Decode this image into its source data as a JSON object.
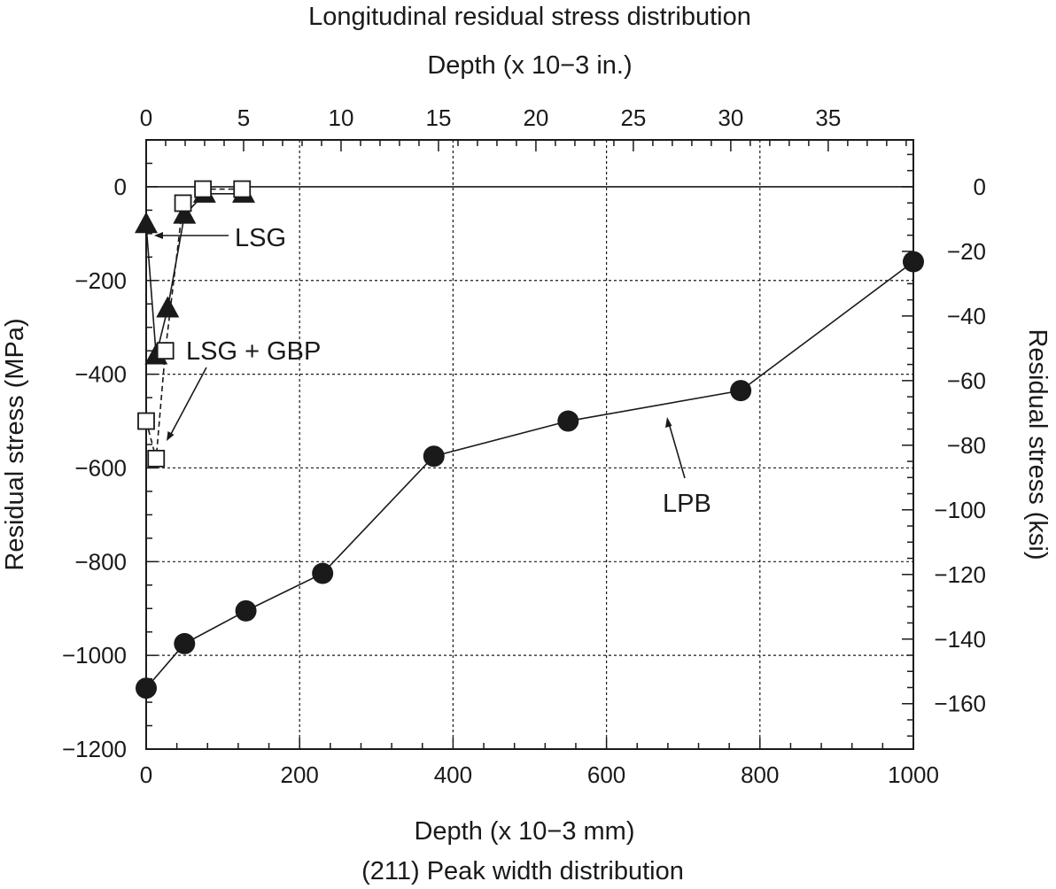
{
  "chart_data": {
    "type": "scatter",
    "title": "Longitudinal residual stress distribution",
    "subtitle": "(211) Peak width distribution",
    "xlabel": "Depth (x 10−3 mm)",
    "x2label": "Depth (x 10−3 in.)",
    "ylabel": "Residual stress (MPa)",
    "y2label": "Residual stress (ksi)",
    "xlim": [
      0,
      1000
    ],
    "ylim": [
      -1200,
      100
    ],
    "x2lim": [
      0,
      39.37
    ],
    "y2lim": [
      -174.05,
      14.5
    ],
    "x_ticks": [
      0,
      200,
      400,
      600,
      800,
      1000
    ],
    "y_ticks": [
      -1200,
      -1000,
      -800,
      -600,
      -400,
      -200,
      0
    ],
    "x2_ticks": [
      0,
      5,
      10,
      15,
      20,
      25,
      30,
      35
    ],
    "y2_ticks": [
      -160,
      -140,
      -120,
      -100,
      -80,
      -60,
      -40,
      -20,
      0
    ],
    "x_tick_labels": [
      "0",
      "200",
      "400",
      "600",
      "800",
      "1000"
    ],
    "y_tick_labels": [
      "−1200",
      "−1000",
      "−800",
      "−600",
      "−400",
      "−200",
      "0"
    ],
    "x2_tick_labels": [
      "0",
      "5",
      "10",
      "15",
      "20",
      "25",
      "30",
      "35"
    ],
    "y2_tick_labels": [
      "−160",
      "−140",
      "−120",
      "−100",
      "−80",
      "−60",
      "−40",
      "−20",
      "0"
    ],
    "grid": true,
    "series": [
      {
        "name": "LSG",
        "marker": "triangle-filled",
        "x": [
          0,
          13,
          28,
          50,
          76,
          127
        ],
        "y": [
          -80,
          -360,
          -260,
          -60,
          -15,
          -15
        ]
      },
      {
        "name": "LSG + GBP",
        "marker": "square-open",
        "x": [
          0,
          13,
          25,
          48,
          74,
          125
        ],
        "y": [
          -500,
          -580,
          -350,
          -35,
          -5,
          -5
        ]
      },
      {
        "name": "LPB",
        "marker": "circle-filled",
        "x": [
          0,
          50,
          130,
          230,
          375,
          550,
          775,
          1000
        ],
        "y": [
          -1070,
          -975,
          -905,
          -825,
          -575,
          -500,
          -435,
          -160
        ]
      }
    ],
    "annotations": [
      "LSG",
      "LSG + GBP",
      "LPB"
    ]
  }
}
